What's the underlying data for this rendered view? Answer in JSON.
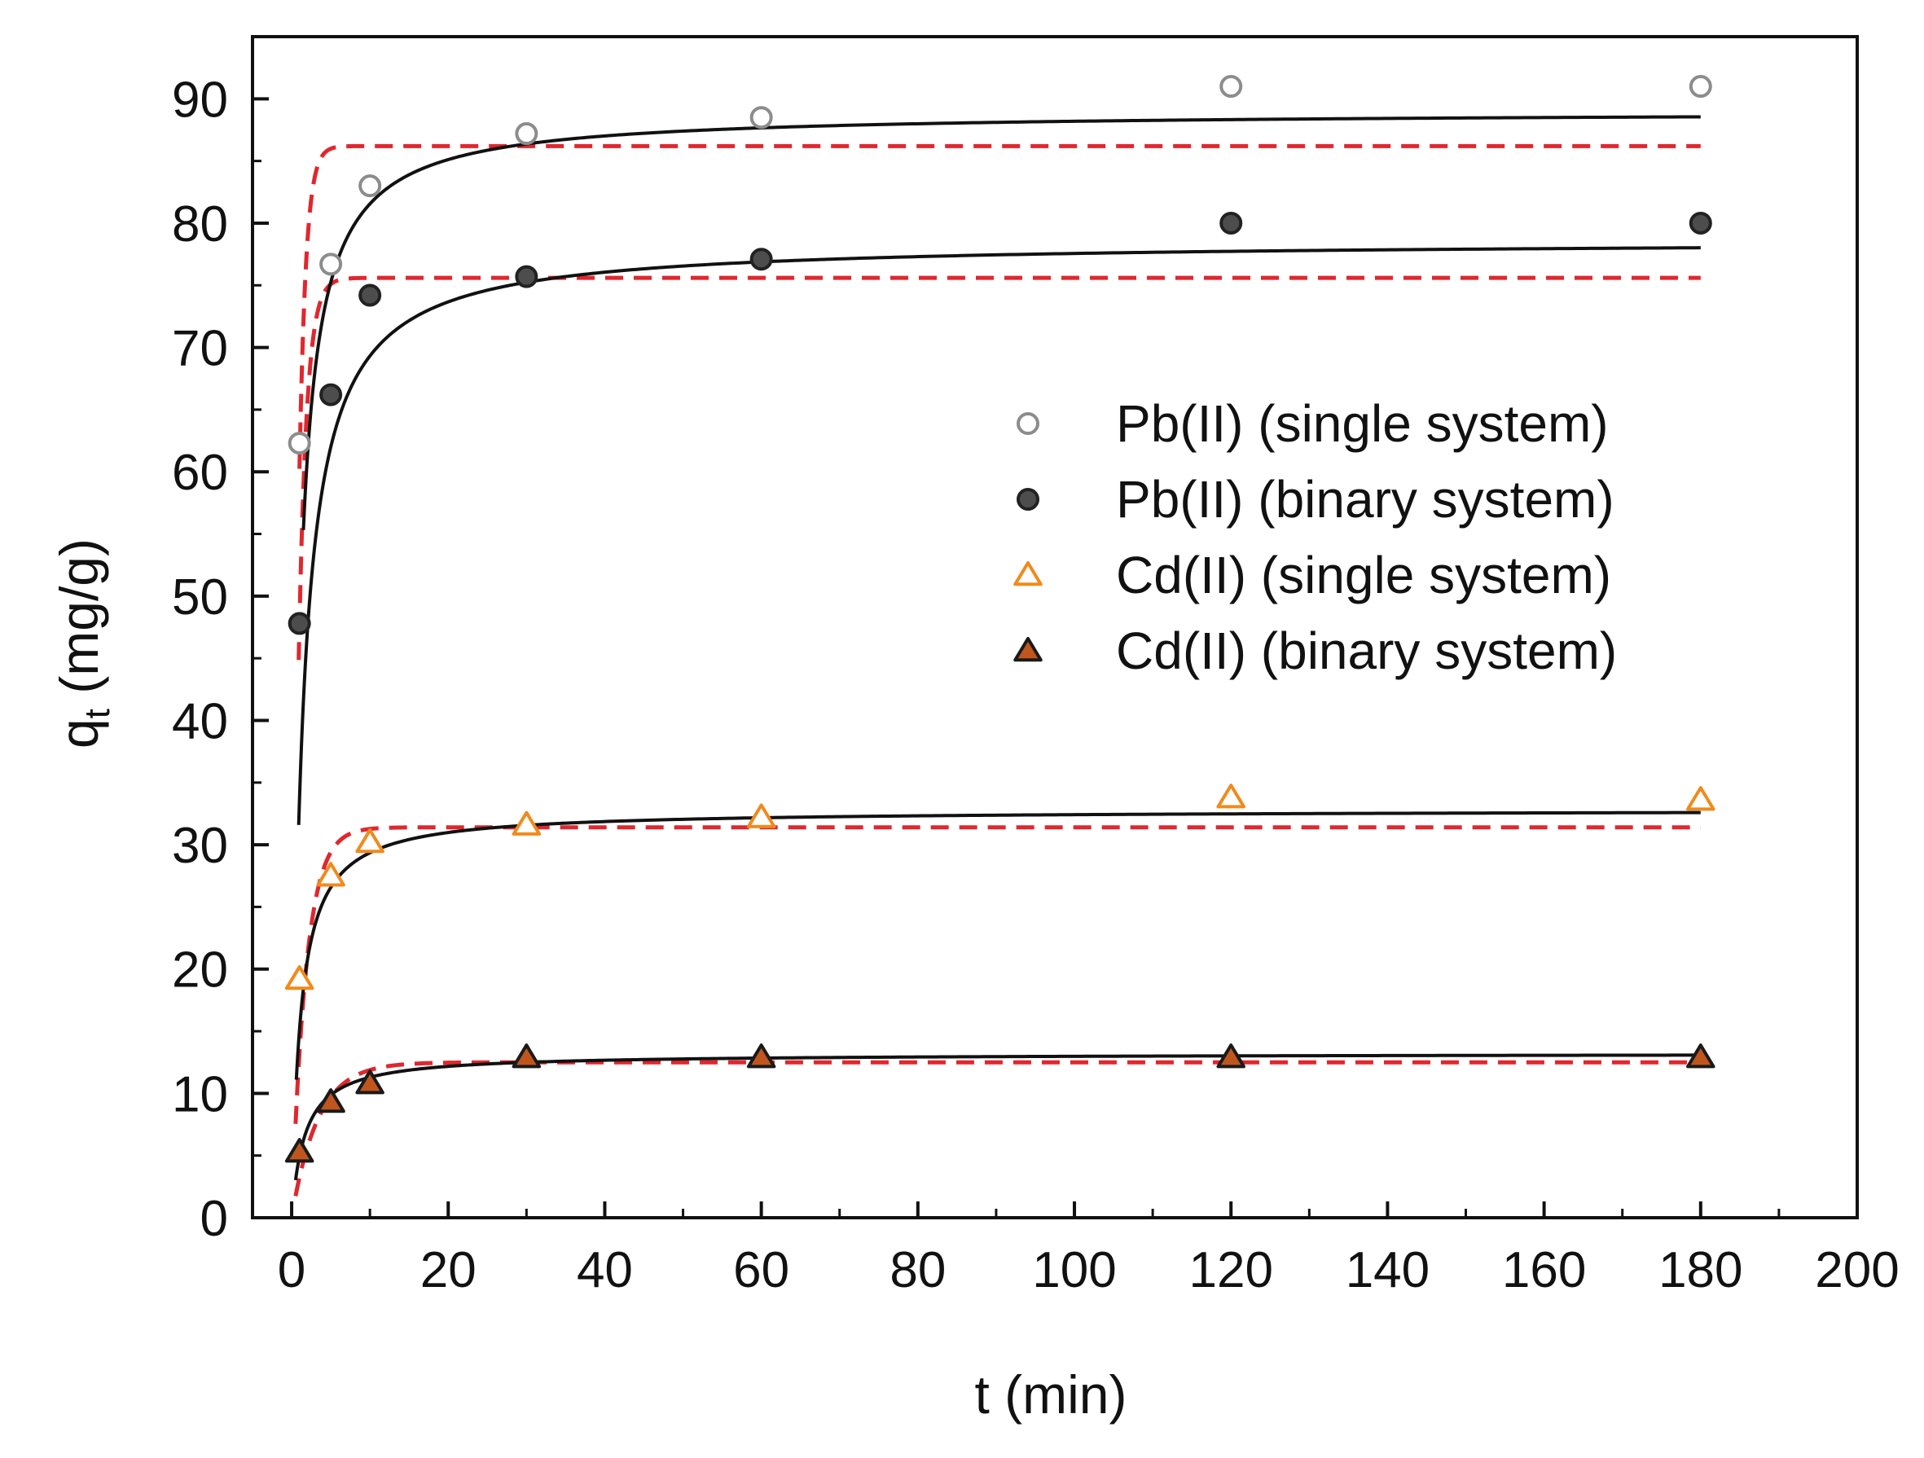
{
  "chart_data": {
    "type": "scatter",
    "title": "",
    "xlabel": "t (min)",
    "ylabel_main": "q",
    "ylabel_sub": "t",
    "ylabel_unit": " (mg/g)",
    "xlim": [
      -5,
      200
    ],
    "ylim": [
      0,
      95
    ],
    "x_ticks": [
      0,
      20,
      40,
      60,
      80,
      100,
      120,
      140,
      160,
      180,
      200
    ],
    "y_ticks": [
      0,
      10,
      20,
      30,
      40,
      50,
      60,
      70,
      80,
      90
    ],
    "grid": false,
    "legend_position": "center-right",
    "series": [
      {
        "name": "Pb(II) (single system)",
        "marker": "circle-open",
        "color": "#8c8c8c",
        "x": [
          1,
          5,
          10,
          30,
          60,
          120,
          180
        ],
        "y": [
          62.3,
          76.7,
          83.0,
          87.2,
          88.5,
          91.0,
          91.0
        ]
      },
      {
        "name": "Pb(II) (binary system)",
        "marker": "circle-filled",
        "color": "#4d4d4d",
        "x": [
          1,
          5,
          10,
          30,
          60,
          120,
          180
        ],
        "y": [
          47.8,
          66.2,
          74.2,
          75.7,
          77.1,
          80.0,
          80.0
        ]
      },
      {
        "name": "Cd(II) (single system)",
        "marker": "triangle-open",
        "color": "#f08a1c",
        "x": [
          1,
          5,
          10,
          30,
          60,
          120,
          180
        ],
        "y": [
          19.2,
          27.5,
          30.2,
          31.6,
          32.2,
          33.8,
          33.6
        ]
      },
      {
        "name": "Cd(II) (binary system)",
        "marker": "triangle-filled",
        "color": "#c0561e",
        "x": [
          1,
          5,
          10,
          30,
          60,
          120,
          180
        ],
        "y": [
          5.3,
          9.3,
          10.8,
          12.9,
          12.9,
          12.9,
          12.9
        ]
      }
    ],
    "fit_models": {
      "solid_line": {
        "color": "#111111",
        "curves": [
          {
            "series": "Pb(II) (single system)",
            "qe": 89.0,
            "k": 0.0123,
            "t0": 1.5
          },
          {
            "series": "Pb(II) (binary system)",
            "qe": 78.6,
            "k": 0.0095,
            "t0": 0.9
          },
          {
            "series": "Cd(II) (single system)",
            "qe": 32.8,
            "k": 0.026,
            "t0": 0.6
          },
          {
            "series": "Cd(II) (binary system)",
            "qe": 13.2,
            "k": 0.045,
            "t0": 0.5
          }
        ]
      },
      "dashed_line": {
        "color": "#e0272e",
        "curves": [
          {
            "series": "Pb(II) (single system)",
            "qe": 86.2,
            "k": 1.2,
            "t0": 1.0
          },
          {
            "series": "Pb(II) (binary system)",
            "qe": 75.6,
            "k": 1.0,
            "t0": 0.9
          },
          {
            "series": "Cd(II) (single system)",
            "qe": 31.4,
            "k": 0.55,
            "t0": 0.5
          },
          {
            "series": "Cd(II) (binary system)",
            "qe": 12.5,
            "k": 0.3,
            "t0": 0.5
          }
        ]
      }
    }
  }
}
